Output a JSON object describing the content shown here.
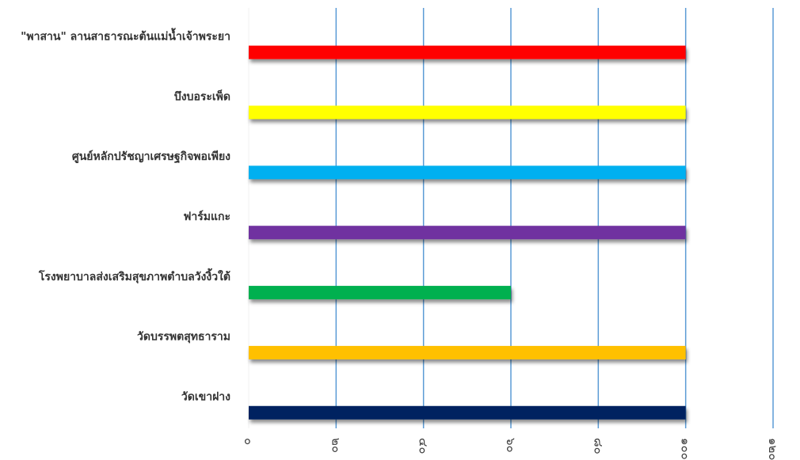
{
  "chart_data": {
    "type": "bar",
    "orientation": "horizontal",
    "categories": [
      "\"พาสาน\" ลานสาธารณะต้นแม่น้ำเจ้าพระยา",
      "บึงบอระเพ็ด",
      "ศูนย์หลักปรัชญาเศรษฐกิจพอเพียง",
      "ฟาร์มแกะ",
      "โรงพยาบาลส่งเสริมสุขภาพตำบลวังงิ้วใต้",
      "วัดบรรพตสุทธาราม",
      "วัดเขาฝาง"
    ],
    "values": [
      100,
      100,
      100,
      100,
      60,
      100,
      100
    ],
    "colors": [
      "#ff0000",
      "#ffff00",
      "#00b0f0",
      "#7030a0",
      "#00b050",
      "#ffc000",
      "#002060"
    ],
    "xlim": [
      0,
      120
    ],
    "x_ticks": [
      0,
      20,
      40,
      60,
      80,
      100,
      120
    ],
    "x_tick_labels": [
      "๐",
      "๒๐",
      "๔๐",
      "๖๐",
      "๘๐",
      "๑๐๐",
      "๑๒๐"
    ],
    "grid": true,
    "grid_color": "#5b9bd5",
    "legend": "none"
  }
}
